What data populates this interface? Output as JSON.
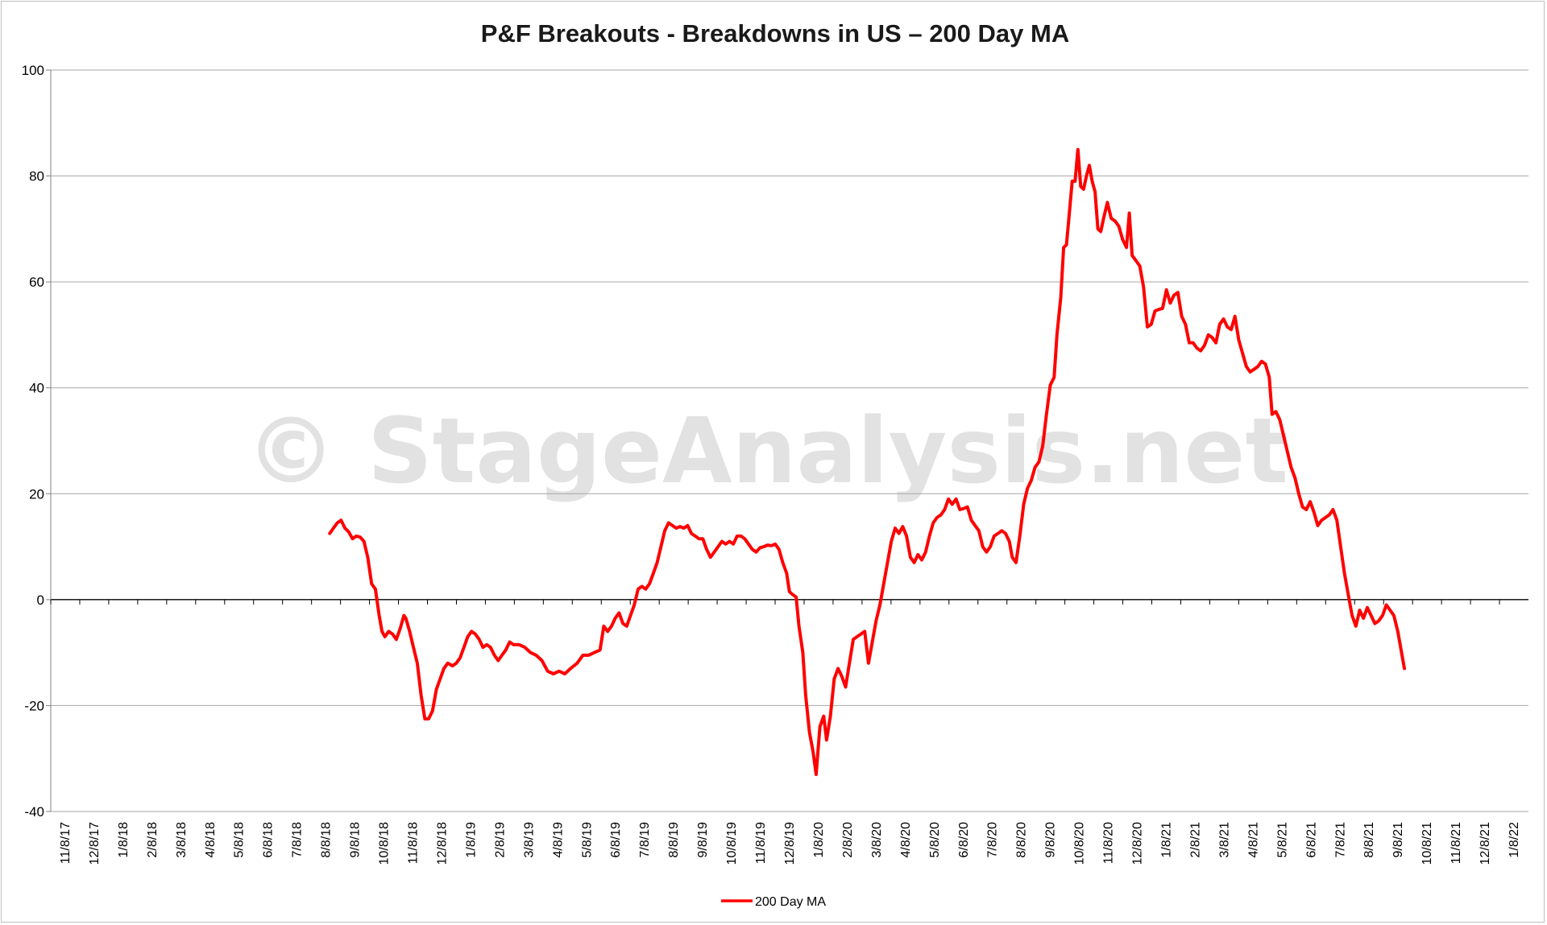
{
  "chart_data": {
    "type": "line",
    "title": "P&F Breakouts - Breakdowns in US – 200 Day MA",
    "watermark": "© StageAnalysis.net",
    "xlabel": "",
    "ylabel": "",
    "ylim": [
      -40,
      100
    ],
    "yticks": [
      "100",
      "80",
      "60",
      "40",
      "20",
      "0",
      "-20",
      "-40"
    ],
    "grid": true,
    "legend_position": "bottom-center",
    "x_tick_labels": [
      "11/8/17",
      "12/8/17",
      "1/8/18",
      "2/8/18",
      "3/8/18",
      "4/8/18",
      "5/8/18",
      "6/8/18",
      "7/8/18",
      "8/8/18",
      "9/8/18",
      "10/8/18",
      "11/8/18",
      "12/8/18",
      "1/8/19",
      "2/8/19",
      "3/8/19",
      "4/8/19",
      "5/8/19",
      "6/8/19",
      "7/8/19",
      "8/8/19",
      "9/8/19",
      "10/8/19",
      "11/8/19",
      "12/8/19",
      "1/8/20",
      "2/8/20",
      "3/8/20",
      "4/8/20",
      "5/8/20",
      "6/8/20",
      "7/8/20",
      "8/8/20",
      "9/8/20",
      "10/8/20",
      "11/8/20",
      "12/8/20",
      "1/8/21",
      "2/8/21",
      "3/8/21",
      "4/8/21",
      "5/8/21",
      "6/8/21",
      "7/8/21",
      "8/8/21",
      "9/8/21",
      "10/8/21",
      "11/8/21",
      "12/8/21",
      "1/8/22"
    ],
    "series": [
      {
        "name": "200 Day MA",
        "color": "#ff0000",
        "points": [
          [
            "8/28/18",
            12.5
          ],
          [
            "9/1/18",
            13.5
          ],
          [
            "9/5/18",
            14.5
          ],
          [
            "9/9/18",
            15
          ],
          [
            "9/13/18",
            13.5
          ],
          [
            "9/17/18",
            12.8
          ],
          [
            "9/21/18",
            11.5
          ],
          [
            "9/25/18",
            12
          ],
          [
            "9/29/18",
            11.8
          ],
          [
            "10/3/18",
            11
          ],
          [
            "10/7/18",
            8
          ],
          [
            "10/11/18",
            3
          ],
          [
            "10/15/18",
            2
          ],
          [
            "10/19/18",
            -3
          ],
          [
            "10/22/18",
            -6
          ],
          [
            "10/25/18",
            -7
          ],
          [
            "10/29/18",
            -6
          ],
          [
            "11/2/18",
            -6.5
          ],
          [
            "11/6/18",
            -7.5
          ],
          [
            "11/10/18",
            -5.5
          ],
          [
            "11/14/18",
            -3
          ],
          [
            "11/16/18",
            -3.5
          ],
          [
            "11/20/18",
            -6
          ],
          [
            "11/24/18",
            -9
          ],
          [
            "11/28/18",
            -12
          ],
          [
            "12/2/18",
            -18
          ],
          [
            "12/6/18",
            -22.5
          ],
          [
            "12/10/18",
            -22.5
          ],
          [
            "12/14/18",
            -21
          ],
          [
            "12/18/18",
            -17
          ],
          [
            "12/22/18",
            -15
          ],
          [
            "12/26/18",
            -13
          ],
          [
            "12/30/18",
            -12
          ],
          [
            "1/4/19",
            -12.5
          ],
          [
            "1/8/19",
            -12
          ],
          [
            "1/12/19",
            -11
          ],
          [
            "1/16/19",
            -9
          ],
          [
            "1/20/19",
            -7
          ],
          [
            "1/24/19",
            -6
          ],
          [
            "1/28/19",
            -6.5
          ],
          [
            "2/1/19",
            -7.5
          ],
          [
            "2/5/19",
            -9
          ],
          [
            "2/9/19",
            -8.5
          ],
          [
            "2/13/19",
            -9
          ],
          [
            "2/17/19",
            -10.5
          ],
          [
            "2/21/19",
            -11.5
          ],
          [
            "2/25/19",
            -10.5
          ],
          [
            "3/1/19",
            -9.5
          ],
          [
            "3/5/19",
            -8
          ],
          [
            "3/9/19",
            -8.5
          ],
          [
            "3/15/19",
            -8.5
          ],
          [
            "3/21/19",
            -9
          ],
          [
            "3/27/19",
            -10
          ],
          [
            "4/2/19",
            -10.5
          ],
          [
            "4/8/19",
            -11.5
          ],
          [
            "4/14/19",
            -13.5
          ],
          [
            "4/20/19",
            -14
          ],
          [
            "4/26/19",
            -13.5
          ],
          [
            "5/2/19",
            -14
          ],
          [
            "5/8/19",
            -13
          ],
          [
            "5/15/19",
            -12
          ],
          [
            "5/21/19",
            -10.5
          ],
          [
            "5/27/19",
            -10.5
          ],
          [
            "6/2/19",
            -10
          ],
          [
            "6/8/19",
            -9.5
          ],
          [
            "6/12/19",
            -5
          ],
          [
            "6/16/19",
            -6
          ],
          [
            "6/20/19",
            -5
          ],
          [
            "6/24/19",
            -3.5
          ],
          [
            "6/28/19",
            -2.5
          ],
          [
            "7/2/19",
            -4.5
          ],
          [
            "7/6/19",
            -5
          ],
          [
            "7/10/19",
            -3
          ],
          [
            "7/14/19",
            -1
          ],
          [
            "7/18/19",
            2
          ],
          [
            "7/22/19",
            2.5
          ],
          [
            "7/26/19",
            2
          ],
          [
            "7/30/19",
            3
          ],
          [
            "8/3/19",
            5
          ],
          [
            "8/7/19",
            7
          ],
          [
            "8/11/19",
            10
          ],
          [
            "8/15/19",
            13
          ],
          [
            "8/19/19",
            14.5
          ],
          [
            "8/23/19",
            14
          ],
          [
            "8/27/19",
            13.5
          ],
          [
            "8/31/19",
            13.8
          ],
          [
            "9/4/19",
            13.5
          ],
          [
            "9/8/19",
            14
          ],
          [
            "9/12/19",
            12.5
          ],
          [
            "9/16/19",
            12
          ],
          [
            "9/20/19",
            11.5
          ],
          [
            "9/24/19",
            11.5
          ],
          [
            "9/28/19",
            9.5
          ],
          [
            "10/2/19",
            8
          ],
          [
            "10/6/19",
            9
          ],
          [
            "10/10/19",
            10
          ],
          [
            "10/14/19",
            11
          ],
          [
            "10/18/19",
            10.5
          ],
          [
            "10/22/19",
            11
          ],
          [
            "10/26/19",
            10.5
          ],
          [
            "10/30/19",
            12
          ],
          [
            "11/3/19",
            12
          ],
          [
            "11/7/19",
            11.5
          ],
          [
            "11/11/19",
            10.5
          ],
          [
            "11/15/19",
            9.5
          ],
          [
            "11/19/19",
            9
          ],
          [
            "11/23/19",
            9.8
          ],
          [
            "11/27/19",
            10
          ],
          [
            "12/1/19",
            10.3
          ],
          [
            "12/5/19",
            10.2
          ],
          [
            "12/9/19",
            10.5
          ],
          [
            "12/13/19",
            9.5
          ],
          [
            "12/17/19",
            7
          ],
          [
            "12/21/19",
            5
          ],
          [
            "12/24/19",
            1.5
          ],
          [
            "12/27/19",
            1
          ],
          [
            "12/31/19",
            0.5
          ],
          [
            "1/3/20",
            -5
          ],
          [
            "1/7/20",
            -10
          ],
          [
            "1/10/20",
            -18
          ],
          [
            "1/14/20",
            -25
          ],
          [
            "1/18/20",
            -29
          ],
          [
            "1/21/20",
            -33
          ],
          [
            "1/25/20",
            -24
          ],
          [
            "1/29/20",
            -22
          ],
          [
            "2/1/20",
            -26.5
          ],
          [
            "2/5/20",
            -22
          ],
          [
            "2/9/20",
            -15
          ],
          [
            "2/13/20",
            -13
          ],
          [
            "2/17/20",
            -14.5
          ],
          [
            "2/21/20",
            -16.5
          ],
          [
            "2/25/20",
            -12
          ],
          [
            "2/29/20",
            -7.5
          ],
          [
            "3/4/20",
            -7
          ],
          [
            "3/8/20",
            -6.5
          ],
          [
            "3/12/20",
            -6
          ],
          [
            "3/16/20",
            -12
          ],
          [
            "3/20/20",
            -8
          ],
          [
            "3/24/20",
            -4
          ],
          [
            "3/28/20",
            -1
          ],
          [
            "4/1/20",
            3
          ],
          [
            "4/5/20",
            7
          ],
          [
            "4/9/20",
            11
          ],
          [
            "4/13/20",
            13.5
          ],
          [
            "4/17/20",
            12.5
          ],
          [
            "4/21/20",
            13.8
          ],
          [
            "4/25/20",
            12
          ],
          [
            "4/29/20",
            8
          ],
          [
            "5/3/20",
            7
          ],
          [
            "5/7/20",
            8.5
          ],
          [
            "5/11/20",
            7.5
          ],
          [
            "5/15/20",
            9
          ],
          [
            "5/19/20",
            12
          ],
          [
            "5/23/20",
            14.5
          ],
          [
            "5/27/20",
            15.5
          ],
          [
            "5/31/20",
            16
          ],
          [
            "6/4/20",
            17
          ],
          [
            "6/8/20",
            19
          ],
          [
            "6/12/20",
            18
          ],
          [
            "6/16/20",
            19
          ],
          [
            "6/20/20",
            17
          ],
          [
            "6/24/20",
            17.2
          ],
          [
            "6/28/20",
            17.5
          ],
          [
            "7/2/20",
            15
          ],
          [
            "7/6/20",
            14
          ],
          [
            "7/10/20",
            13
          ],
          [
            "7/14/20",
            10
          ],
          [
            "7/18/20",
            9
          ],
          [
            "7/22/20",
            10
          ],
          [
            "7/26/20",
            12
          ],
          [
            "7/30/20",
            12.5
          ],
          [
            "8/3/20",
            13
          ],
          [
            "8/7/20",
            12.5
          ],
          [
            "8/11/20",
            11
          ],
          [
            "8/14/20",
            8
          ],
          [
            "8/18/20",
            7
          ],
          [
            "8/22/20",
            12
          ],
          [
            "8/26/20",
            18
          ],
          [
            "8/30/20",
            21
          ],
          [
            "9/3/20",
            22.5
          ],
          [
            "9/7/20",
            25
          ],
          [
            "9/11/20",
            26
          ],
          [
            "9/15/20",
            29
          ],
          [
            "9/19/20",
            35
          ],
          [
            "9/23/20",
            40.5
          ],
          [
            "9/27/20",
            42
          ],
          [
            "9/30/20",
            50
          ],
          [
            "10/4/20",
            57
          ],
          [
            "10/7/20",
            66.5
          ],
          [
            "10/10/20",
            67
          ],
          [
            "10/13/20",
            73
          ],
          [
            "10/16/20",
            79
          ],
          [
            "10/19/20",
            79
          ],
          [
            "10/22/20",
            85
          ],
          [
            "10/25/20",
            78
          ],
          [
            "10/28/20",
            77.5
          ],
          [
            "10/31/20",
            80
          ],
          [
            "11/3/20",
            82
          ],
          [
            "11/6/20",
            79
          ],
          [
            "11/9/20",
            77
          ],
          [
            "11/12/20",
            70
          ],
          [
            "11/15/20",
            69.5
          ],
          [
            "11/18/20",
            72
          ],
          [
            "11/22/20",
            75
          ],
          [
            "11/26/20",
            72
          ],
          [
            "11/30/20",
            71.5
          ],
          [
            "12/4/20",
            70.5
          ],
          [
            "12/8/20",
            68
          ],
          [
            "12/12/20",
            66.5
          ],
          [
            "12/15/20",
            73
          ],
          [
            "12/18/20",
            65
          ],
          [
            "12/22/20",
            64
          ],
          [
            "12/26/20",
            63
          ],
          [
            "12/30/20",
            59
          ],
          [
            "1/3/21",
            51.5
          ],
          [
            "1/7/21",
            52
          ],
          [
            "1/11/21",
            54.5
          ],
          [
            "1/15/21",
            54.8
          ],
          [
            "1/19/21",
            55
          ],
          [
            "1/23/21",
            58.5
          ],
          [
            "1/27/21",
            56
          ],
          [
            "1/31/21",
            57.5
          ],
          [
            "2/4/21",
            58
          ],
          [
            "2/8/21",
            53.5
          ],
          [
            "2/12/21",
            52
          ],
          [
            "2/16/21",
            48.5
          ],
          [
            "2/20/21",
            48.5
          ],
          [
            "2/24/21",
            47.5
          ],
          [
            "2/28/21",
            47
          ],
          [
            "3/4/21",
            48
          ],
          [
            "3/8/21",
            50
          ],
          [
            "3/12/21",
            49.5
          ],
          [
            "3/16/21",
            48.5
          ],
          [
            "3/20/21",
            52
          ],
          [
            "3/24/21",
            53
          ],
          [
            "3/28/21",
            51.5
          ],
          [
            "4/1/21",
            51
          ],
          [
            "4/5/21",
            53.5
          ],
          [
            "4/9/21",
            49
          ],
          [
            "4/13/21",
            46.5
          ],
          [
            "4/17/21",
            44
          ],
          [
            "4/21/21",
            43
          ],
          [
            "4/25/21",
            43.5
          ],
          [
            "4/29/21",
            44
          ],
          [
            "5/3/21",
            45
          ],
          [
            "5/7/21",
            44.5
          ],
          [
            "5/11/21",
            42
          ],
          [
            "5/14/21",
            35
          ],
          [
            "5/18/21",
            35.5
          ],
          [
            "5/22/21",
            34
          ],
          [
            "5/26/21",
            31
          ],
          [
            "5/30/21",
            28
          ],
          [
            "6/3/21",
            25
          ],
          [
            "6/7/21",
            23
          ],
          [
            "6/11/21",
            20
          ],
          [
            "6/15/21",
            17.5
          ],
          [
            "6/19/21",
            17
          ],
          [
            "6/23/21",
            18.5
          ],
          [
            "6/27/21",
            16.5
          ],
          [
            "7/1/21",
            14
          ],
          [
            "7/5/21",
            15
          ],
          [
            "7/9/21",
            15.5
          ],
          [
            "7/13/21",
            16
          ],
          [
            "7/17/21",
            17
          ],
          [
            "7/21/21",
            15
          ],
          [
            "7/25/21",
            10
          ],
          [
            "7/29/21",
            5
          ],
          [
            "8/2/21",
            1
          ],
          [
            "8/6/21",
            -3
          ],
          [
            "8/10/21",
            -5
          ],
          [
            "8/14/21",
            -2
          ],
          [
            "8/18/21",
            -3.5
          ],
          [
            "8/22/21",
            -1.5
          ],
          [
            "8/26/21",
            -3
          ],
          [
            "8/30/21",
            -4.5
          ],
          [
            "9/3/21",
            -4
          ],
          [
            "9/7/21",
            -3
          ],
          [
            "9/11/21",
            -1
          ],
          [
            "9/15/21",
            -2
          ],
          [
            "9/19/21",
            -3
          ],
          [
            "9/23/21",
            -6
          ],
          [
            "9/27/21",
            -10
          ],
          [
            "9/30/21",
            -13
          ]
        ]
      }
    ]
  }
}
